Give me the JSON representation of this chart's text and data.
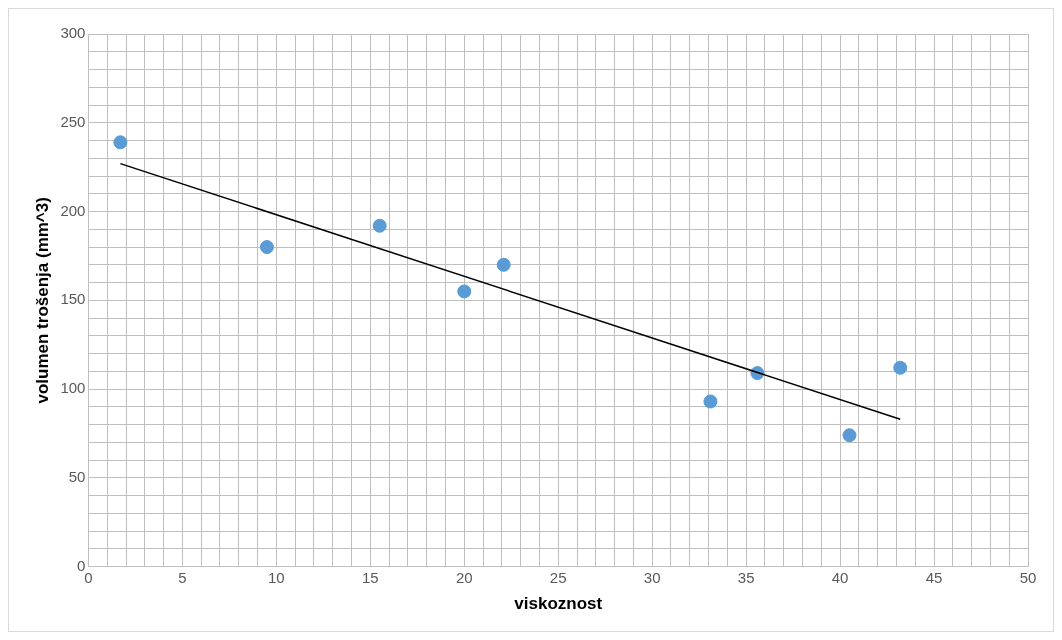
{
  "chart_data": {
    "type": "scatter",
    "xlabel": "viskoznost",
    "ylabel": "volumen trošenja (mm^3)",
    "series": [
      {
        "color": "#5b9bd5",
        "x": [
          1.7,
          9.5,
          15.5,
          20.0,
          22.1,
          33.1,
          35.6,
          40.5,
          43.2
        ],
        "values": [
          239,
          180,
          192,
          155,
          170,
          93,
          109,
          74,
          112
        ],
        "marker": "circle"
      },
      {
        "type": "line",
        "color": "#000000",
        "x": [
          1.7,
          43.2
        ],
        "values": [
          227,
          83
        ],
        "marker": "none"
      }
    ],
    "xlim": [
      0,
      50
    ],
    "ylim": [
      0,
      300
    ],
    "xticks": [
      0,
      {
        "value": 1,
        "label": null
      },
      {
        "value": 2,
        "label": null
      },
      {
        "value": 3,
        "label": null
      },
      {
        "value": 4,
        "label": null
      },
      5,
      {
        "value": 6,
        "label": null
      },
      {
        "value": 7,
        "label": null
      },
      {
        "value": 8,
        "label": null
      },
      {
        "value": 9,
        "label": null
      },
      10,
      {
        "value": 11,
        "label": null
      },
      {
        "value": 12,
        "label": null
      },
      {
        "value": 13,
        "label": null
      },
      {
        "value": 14,
        "label": null
      },
      15,
      {
        "value": 16,
        "label": null
      },
      {
        "value": 17,
        "label": null
      },
      {
        "value": 18,
        "label": null
      },
      {
        "value": 19,
        "label": null
      },
      20,
      {
        "value": 21,
        "label": null
      },
      {
        "value": 22,
        "label": null
      },
      {
        "value": 23,
        "label": null
      },
      {
        "value": 24,
        "label": null
      },
      25,
      {
        "value": 26,
        "label": null
      },
      {
        "value": 27,
        "label": null
      },
      {
        "value": 28,
        "label": null
      },
      {
        "value": 29,
        "label": null
      },
      30,
      {
        "value": 31,
        "label": null
      },
      {
        "value": 32,
        "label": null
      },
      {
        "value": 33,
        "label": null
      },
      {
        "value": 34,
        "label": null
      },
      35,
      {
        "value": 36,
        "label": null
      },
      {
        "value": 37,
        "label": null
      },
      {
        "value": 38,
        "label": null
      },
      {
        "value": 39,
        "label": null
      },
      40,
      {
        "value": 41,
        "label": null
      },
      {
        "value": 42,
        "label": null
      },
      {
        "value": 43,
        "label": null
      },
      {
        "value": 44,
        "label": null
      },
      45,
      {
        "value": 46,
        "label": null
      },
      {
        "value": 47,
        "label": null
      },
      {
        "value": 48,
        "label": null
      },
      {
        "value": 49,
        "label": null
      },
      50
    ],
    "yticks": [
      0,
      {
        "value": 10,
        "label": null
      },
      {
        "value": 20,
        "label": null
      },
      {
        "value": 30,
        "label": null
      },
      {
        "value": 40,
        "label": null
      },
      50,
      {
        "value": 60,
        "label": null
      },
      {
        "value": 70,
        "label": null
      },
      {
        "value": 80,
        "label": null
      },
      {
        "value": 90,
        "label": null
      },
      100,
      {
        "value": 110,
        "label": null
      },
      {
        "value": 120,
        "label": null
      },
      {
        "value": 130,
        "label": null
      },
      {
        "value": 140,
        "label": null
      },
      150,
      {
        "value": 160,
        "label": null
      },
      {
        "value": 170,
        "label": null
      },
      {
        "value": 180,
        "label": null
      },
      {
        "value": 190,
        "label": null
      },
      200,
      {
        "value": 210,
        "label": null
      },
      {
        "value": 220,
        "label": null
      },
      {
        "value": 230,
        "label": null
      },
      {
        "value": 240,
        "label": null
      },
      250,
      {
        "value": 260,
        "label": null
      },
      {
        "value": 270,
        "label": null
      },
      {
        "value": 280,
        "label": null
      },
      {
        "value": 290,
        "label": null
      },
      300
    ],
    "grid": true,
    "legend": false
  }
}
